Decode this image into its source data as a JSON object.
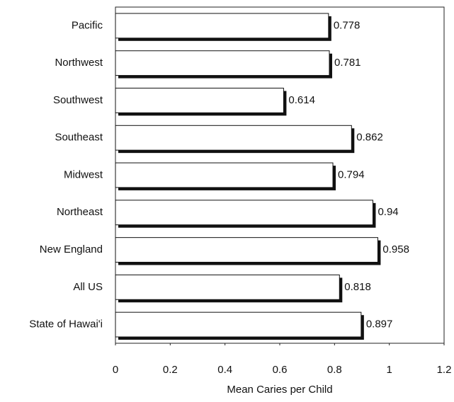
{
  "chart_data": {
    "type": "bar",
    "orientation": "horizontal",
    "x_label": "Mean Caries per Child",
    "categories": [
      "Pacific",
      "Northwest",
      "Southwest",
      "Southeast",
      "Midwest",
      "Northeast",
      "New England",
      "All US",
      "State of Hawai'i"
    ],
    "values": [
      0.778,
      0.781,
      0.614,
      0.862,
      0.794,
      0.94,
      0.958,
      0.818,
      0.897
    ],
    "color": "#ffffff",
    "xlim": [
      0,
      1.2
    ],
    "xticks": [
      0,
      0.2,
      0.4,
      0.6,
      0.8,
      1,
      1.2
    ],
    "grid": false
  }
}
